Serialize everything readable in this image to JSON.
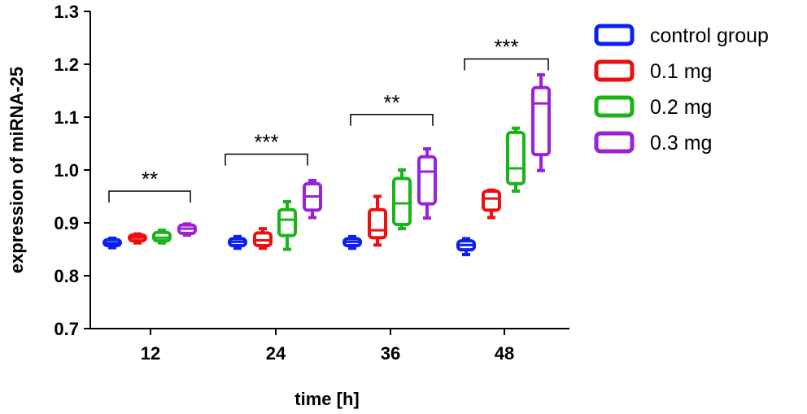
{
  "chart_data": {
    "type": "box",
    "ylabel": "expression of miRNA-25",
    "xlabel": "time [h]",
    "categories": [
      "12",
      "24",
      "36",
      "48"
    ],
    "ylim": [
      0.7,
      1.3
    ],
    "yticks": [
      "0.7",
      "0.8",
      "0.9",
      "1.0",
      "1.1",
      "1.2",
      "1.3"
    ],
    "grid": false,
    "legend_position": "right",
    "series": [
      {
        "name": "control group",
        "color": "#0b1ff0",
        "boxes": [
          {
            "min": 0.853,
            "q1": 0.857,
            "median": 0.862,
            "q3": 0.868,
            "max": 0.871
          },
          {
            "min": 0.852,
            "q1": 0.857,
            "median": 0.864,
            "q3": 0.87,
            "max": 0.874
          },
          {
            "min": 0.852,
            "q1": 0.857,
            "median": 0.864,
            "q3": 0.87,
            "max": 0.874
          },
          {
            "min": 0.84,
            "q1": 0.849,
            "median": 0.858,
            "q3": 0.866,
            "max": 0.87
          }
        ]
      },
      {
        "name": "0.1 mg",
        "color": "#ee0e0e",
        "boxes": [
          {
            "min": 0.862,
            "q1": 0.866,
            "median": 0.872,
            "q3": 0.877,
            "max": 0.879
          },
          {
            "min": 0.852,
            "q1": 0.857,
            "median": 0.867,
            "q3": 0.881,
            "max": 0.889
          },
          {
            "min": 0.858,
            "q1": 0.872,
            "median": 0.886,
            "q3": 0.925,
            "max": 0.95
          },
          {
            "min": 0.91,
            "q1": 0.924,
            "median": 0.946,
            "q3": 0.96,
            "max": 0.962
          }
        ]
      },
      {
        "name": "0.2 mg",
        "color": "#1ab31a",
        "boxes": [
          {
            "min": 0.862,
            "q1": 0.866,
            "median": 0.872,
            "q3": 0.882,
            "max": 0.886
          },
          {
            "min": 0.85,
            "q1": 0.876,
            "median": 0.906,
            "q3": 0.925,
            "max": 0.94
          },
          {
            "min": 0.889,
            "q1": 0.897,
            "median": 0.937,
            "q3": 0.984,
            "max": 1.0
          },
          {
            "min": 0.96,
            "q1": 0.974,
            "median": 1.003,
            "q3": 1.071,
            "max": 1.079
          }
        ]
      },
      {
        "name": "0.3 mg",
        "color": "#9b21d8",
        "boxes": [
          {
            "min": 0.877,
            "q1": 0.88,
            "median": 0.889,
            "q3": 0.896,
            "max": 0.898
          },
          {
            "min": 0.91,
            "q1": 0.924,
            "median": 0.95,
            "q3": 0.974,
            "max": 0.98
          },
          {
            "min": 0.909,
            "q1": 0.936,
            "median": 0.997,
            "q3": 1.025,
            "max": 1.04
          },
          {
            "min": 0.999,
            "q1": 1.029,
            "median": 1.126,
            "q3": 1.156,
            "max": 1.18
          }
        ]
      }
    ],
    "annotations": [
      {
        "category": "12",
        "text": "**",
        "level": 0.96
      },
      {
        "category": "24",
        "text": "***",
        "level": 1.03
      },
      {
        "category": "36",
        "text": "**",
        "level": 1.105
      },
      {
        "category": "48",
        "text": "***",
        "level": 1.21
      }
    ]
  }
}
